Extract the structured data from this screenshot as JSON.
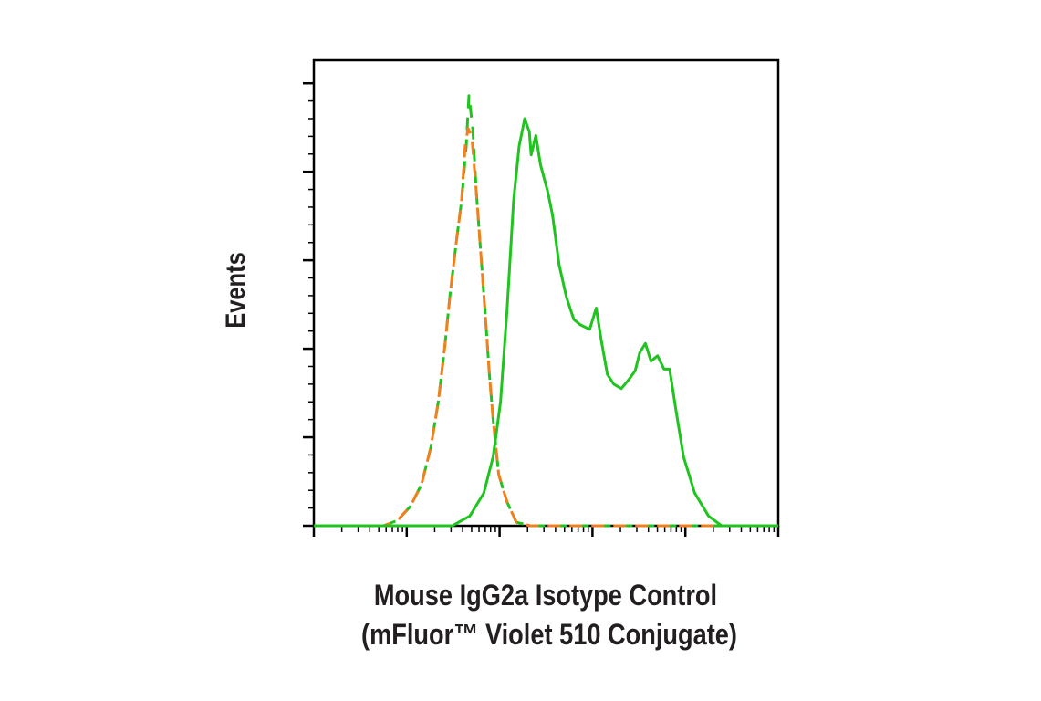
{
  "chart_data": {
    "type": "line",
    "title": "",
    "xlabel_lines": [
      "Mouse IgG2a Isotype Control",
      "(mFluor™ Violet 510 Conjugate)"
    ],
    "ylabel": "Events",
    "x_scale": "log10 decades (unlabeled)",
    "xlim_decades": [
      0,
      5
    ],
    "ylim_major_tick_units": [
      0,
      5.26
    ],
    "y_major_ticks": 5,
    "grid": false,
    "legend": "none",
    "series": [
      {
        "name": "isotype-control-green-dashed",
        "color": "#1fc41f",
        "style": "dashed",
        "x": [
          0.75,
          0.9,
          1.04,
          1.16,
          1.26,
          1.34,
          1.41,
          1.47,
          1.54,
          1.59,
          1.64,
          1.67,
          1.71,
          1.75,
          1.8,
          1.85,
          1.89,
          1.93,
          1.99,
          2.08,
          2.18,
          2.33,
          5.0
        ],
        "y": [
          0,
          0.06,
          0.22,
          0.47,
          0.89,
          1.4,
          2.02,
          2.64,
          3.26,
          3.67,
          4.29,
          4.86,
          4.49,
          3.77,
          3.05,
          2.33,
          1.71,
          1.2,
          0.58,
          0.27,
          0.04,
          0,
          0
        ]
      },
      {
        "name": "isotype-control-orange-dashed",
        "color": "#f07f1e",
        "style": "dashed",
        "x": [
          0.75,
          0.9,
          1.04,
          1.16,
          1.26,
          1.34,
          1.41,
          1.47,
          1.54,
          1.59,
          1.63,
          1.66,
          1.7,
          1.75,
          1.8,
          1.85,
          1.89,
          1.93,
          1.99,
          2.08,
          2.18,
          2.33,
          5.0
        ],
        "y": [
          0,
          0.06,
          0.22,
          0.47,
          0.89,
          1.4,
          2.02,
          2.64,
          3.26,
          3.67,
          4.3,
          4.49,
          4.4,
          3.77,
          3.05,
          2.33,
          1.71,
          1.2,
          0.58,
          0.27,
          0.04,
          0,
          0
        ]
      },
      {
        "name": "stained-sample-green-solid",
        "color": "#1fc41f",
        "style": "solid",
        "x": [
          0,
          1.49,
          1.68,
          1.83,
          1.93,
          2.01,
          2.08,
          2.15,
          2.21,
          2.27,
          2.32,
          2.34,
          2.39,
          2.44,
          2.52,
          2.57,
          2.64,
          2.72,
          2.8,
          2.87,
          2.97,
          3.04,
          3.09,
          3.16,
          3.23,
          3.31,
          3.39,
          3.46,
          3.51,
          3.57,
          3.63,
          3.7,
          3.77,
          3.83,
          3.9,
          3.98,
          4.1,
          4.25,
          4.39,
          5.0
        ],
        "y": [
          0,
          0,
          0.11,
          0.37,
          0.78,
          1.4,
          2.43,
          3.67,
          4.29,
          4.6,
          4.45,
          4.19,
          4.41,
          4.08,
          3.77,
          3.51,
          2.95,
          2.58,
          2.33,
          2.27,
          2.22,
          2.46,
          2.12,
          1.71,
          1.6,
          1.55,
          1.65,
          1.75,
          1.96,
          2.06,
          1.86,
          1.92,
          1.77,
          1.77,
          1.3,
          0.78,
          0.37,
          0.11,
          0,
          0
        ]
      }
    ]
  }
}
